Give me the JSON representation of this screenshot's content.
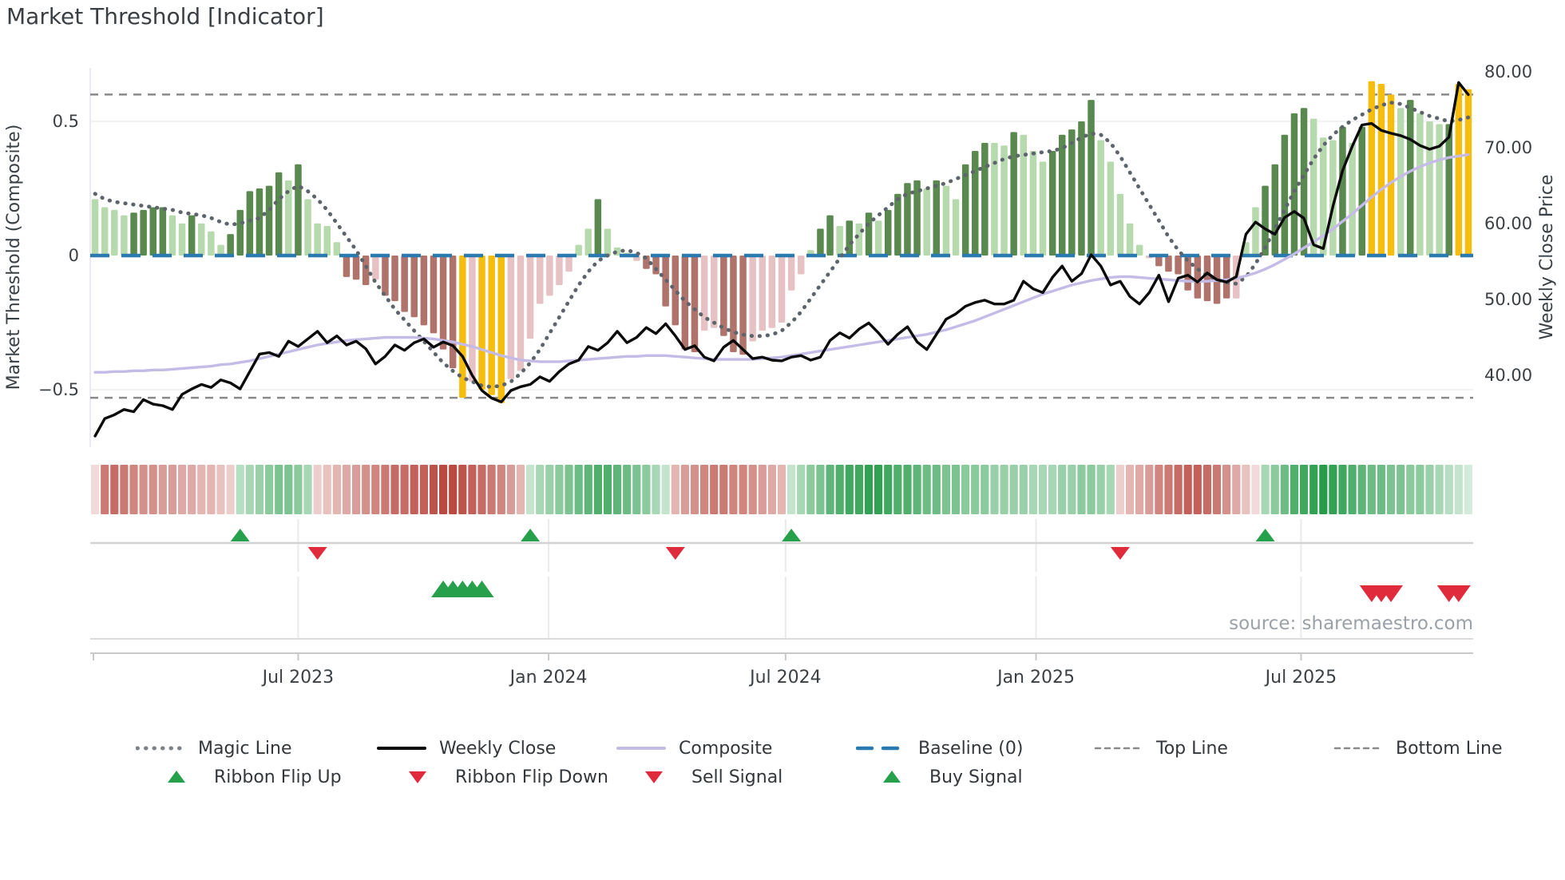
{
  "title": "Market Threshold [Indicator]",
  "source": "source: sharemaestro.com",
  "colors": {
    "bar_light_green": "#b7d9ae",
    "bar_dark_green": "#59894f",
    "bar_yellow": "#f5bd0d",
    "bar_pink": "#e7c2c4",
    "bar_dark_red": "#b0736b",
    "baseline_blue": "#2a7ab0",
    "magic_line_gray": "#5d646b",
    "weekly_close_black": "#0b0b0b",
    "composite_lavender": "#c5bbe7",
    "threshold_gray": "#8a8a8a",
    "ribbon_red_base": "#b94a42",
    "ribbon_green_base": "#279c4a",
    "signal_green": "#27a04b",
    "signal_red": "#e02b3d",
    "axis_text": "#3b4045",
    "grid": "#ededf3"
  },
  "chart_data": {
    "type": "bar",
    "title": "Market Threshold [Indicator]",
    "x_axis": {
      "tick_labels": [
        "Jul 2023",
        "Jan 2024",
        "Jul 2024",
        "Jan 2025",
        "Jul 2025"
      ],
      "tick_weeks": [
        21.0,
        46.9,
        71.4,
        97.3,
        124.7
      ],
      "n_weeks": 143
    },
    "left_axis": {
      "title": "Market Threshold (Composite)",
      "tick_labels": [
        "0.5",
        "0",
        "−0.5"
      ],
      "tick_values": [
        0.5,
        0,
        -0.5
      ]
    },
    "right_axis": {
      "title": "Weekly Close Price",
      "tick_labels": [
        "80.00",
        "70.00",
        "60.00",
        "50.00",
        "40.00"
      ],
      "tick_values": [
        80,
        70,
        60,
        50,
        40
      ]
    },
    "baseline": 0,
    "top_line": 0.6,
    "bottom_line": -0.53,
    "threshold_bars": {
      "values": [
        0.21,
        0.18,
        0.17,
        0.15,
        0.16,
        0.17,
        0.18,
        0.18,
        0.15,
        0.12,
        0.15,
        0.12,
        0.09,
        0.04,
        0.08,
        0.17,
        0.24,
        0.25,
        0.26,
        0.31,
        0.28,
        0.34,
        0.21,
        0.12,
        0.11,
        0.05,
        -0.08,
        -0.09,
        -0.11,
        -0.09,
        -0.15,
        -0.17,
        -0.21,
        -0.23,
        -0.26,
        -0.29,
        -0.35,
        -0.42,
        -0.53,
        -0.47,
        -0.5,
        -0.52,
        -0.55,
        -0.46,
        -0.43,
        -0.31,
        -0.18,
        -0.15,
        -0.11,
        -0.06,
        0.04,
        0.1,
        0.21,
        0.1,
        0.03,
        0.01,
        -0.02,
        -0.05,
        -0.07,
        -0.19,
        -0.26,
        -0.35,
        -0.36,
        -0.28,
        -0.27,
        -0.3,
        -0.36,
        -0.37,
        -0.32,
        -0.28,
        -0.27,
        -0.25,
        -0.13,
        -0.07,
        0.02,
        0.1,
        0.15,
        0.11,
        0.13,
        0.12,
        0.16,
        0.13,
        0.17,
        0.23,
        0.27,
        0.28,
        0.25,
        0.28,
        0.26,
        0.21,
        0.34,
        0.39,
        0.42,
        0.42,
        0.41,
        0.46,
        0.45,
        0.39,
        0.35,
        0.39,
        0.45,
        0.47,
        0.5,
        0.58,
        0.43,
        0.35,
        0.23,
        0.12,
        0.04,
        -0.01,
        -0.04,
        -0.06,
        -0.07,
        -0.13,
        -0.16,
        -0.17,
        -0.18,
        -0.16,
        -0.16,
        0.05,
        0.18,
        0.26,
        0.34,
        0.45,
        0.53,
        0.55,
        0.51,
        0.44,
        0.43,
        0.48,
        0.42,
        0.48,
        0.65,
        0.64,
        0.6,
        0.55,
        0.58,
        0.53,
        0.5,
        0.49,
        0.49,
        0.64,
        0.62
      ],
      "colors": [
        "lg",
        "lg",
        "lg",
        "lg",
        "dg",
        "dg",
        "dg",
        "dg",
        "lg",
        "lg",
        "dg",
        "lg",
        "lg",
        "lg",
        "dg",
        "dg",
        "dg",
        "dg",
        "dg",
        "dg",
        "lg",
        "dg",
        "lg",
        "lg",
        "lg",
        "lg",
        "dr",
        "dr",
        "dr",
        "pk",
        "dr",
        "dr",
        "dr",
        "dr",
        "dr",
        "dr",
        "dr",
        "dr",
        "y",
        "pk",
        "y",
        "y",
        "y",
        "pk",
        "pk",
        "pk",
        "pk",
        "pk",
        "pk",
        "pk",
        "lg",
        "lg",
        "dg",
        "lg",
        "lg",
        "lg",
        "pk",
        "dr",
        "dr",
        "dr",
        "dr",
        "dr",
        "dr",
        "pk",
        "pk",
        "dr",
        "dr",
        "dr",
        "pk",
        "pk",
        "pk",
        "pk",
        "pk",
        "pk",
        "lg",
        "dg",
        "dg",
        "lg",
        "dg",
        "lg",
        "dg",
        "lg",
        "dg",
        "dg",
        "dg",
        "dg",
        "lg",
        "dg",
        "lg",
        "lg",
        "dg",
        "dg",
        "dg",
        "lg",
        "lg",
        "dg",
        "lg",
        "lg",
        "lg",
        "dg",
        "dg",
        "dg",
        "dg",
        "dg",
        "lg",
        "lg",
        "lg",
        "lg",
        "lg",
        "pk",
        "dr",
        "dr",
        "dr",
        "dr",
        "dr",
        "dr",
        "dr",
        "dr",
        "pk",
        "lg",
        "lg",
        "dg",
        "dg",
        "dg",
        "dg",
        "dg",
        "lg",
        "lg",
        "lg",
        "dg",
        "lg",
        "dg",
        "y",
        "y",
        "y",
        "lg",
        "dg",
        "lg",
        "lg",
        "lg",
        "dg",
        "y",
        "y"
      ]
    },
    "weekly_close": [
      32.0,
      34.3,
      34.8,
      35.5,
      35.2,
      36.8,
      36.2,
      36.0,
      35.5,
      37.5,
      38.2,
      38.8,
      38.4,
      39.4,
      39.0,
      38.2,
      40.5,
      42.8,
      43.0,
      42.5,
      44.5,
      43.8,
      44.8,
      45.8,
      44.3,
      45.2,
      44.0,
      44.5,
      43.5,
      41.5,
      42.5,
      44.0,
      43.3,
      44.3,
      44.8,
      43.7,
      44.4,
      43.9,
      42.5,
      40.0,
      38.0,
      37.0,
      36.5,
      38.0,
      38.5,
      38.8,
      39.8,
      39.2,
      40.5,
      41.5,
      42.0,
      43.8,
      43.3,
      44.3,
      45.8,
      44.3,
      45.0,
      46.3,
      45.5,
      46.8,
      45.2,
      43.4,
      43.9,
      42.4,
      41.9,
      43.7,
      44.6,
      43.4,
      42.2,
      42.4,
      42.0,
      41.9,
      42.4,
      42.6,
      42.0,
      42.4,
      44.6,
      45.6,
      44.9,
      46.1,
      46.9,
      45.6,
      44.1,
      45.4,
      46.4,
      44.4,
      43.4,
      45.4,
      47.4,
      48.1,
      49.1,
      49.6,
      49.9,
      49.4,
      49.4,
      49.9,
      52.4,
      51.4,
      50.9,
      52.9,
      54.4,
      52.4,
      53.4,
      55.9,
      54.4,
      51.9,
      52.4,
      50.4,
      49.4,
      50.9,
      53.2,
      49.7,
      52.8,
      53.2,
      52.3,
      53.5,
      52.6,
      52.3,
      53.0,
      58.6,
      60.2,
      59.3,
      58.6,
      60.8,
      61.6,
      60.7,
      57.2,
      56.7,
      62.3,
      67.0,
      70.2,
      73.0,
      73.2,
      72.3,
      71.9,
      71.6,
      71.1,
      70.3,
      69.8,
      70.2,
      71.4,
      78.6,
      77.0
    ],
    "composite": [
      40.4,
      40.4,
      40.5,
      40.5,
      40.6,
      40.6,
      40.7,
      40.7,
      40.8,
      40.9,
      41.0,
      41.1,
      41.2,
      41.4,
      41.5,
      41.7,
      41.9,
      42.2,
      42.5,
      42.8,
      43.1,
      43.4,
      43.7,
      44.0,
      44.2,
      44.4,
      44.6,
      44.7,
      44.8,
      44.9,
      45.0,
      45.0,
      45.0,
      45.0,
      44.9,
      44.8,
      44.6,
      44.4,
      44.1,
      43.8,
      43.4,
      43.0,
      42.6,
      42.3,
      42.0,
      41.9,
      41.8,
      41.8,
      41.8,
      41.9,
      42.0,
      42.1,
      42.2,
      42.3,
      42.4,
      42.5,
      42.5,
      42.6,
      42.6,
      42.6,
      42.5,
      42.4,
      42.3,
      42.2,
      42.1,
      42.1,
      42.1,
      42.1,
      42.1,
      42.2,
      42.3,
      42.4,
      42.6,
      42.8,
      43.0,
      43.2,
      43.4,
      43.6,
      43.8,
      44.0,
      44.2,
      44.4,
      44.6,
      44.8,
      45.0,
      45.2,
      45.4,
      45.7,
      46.0,
      46.4,
      46.8,
      47.2,
      47.7,
      48.2,
      48.7,
      49.2,
      49.7,
      50.2,
      50.7,
      51.1,
      51.5,
      51.9,
      52.2,
      52.5,
      52.7,
      52.9,
      53.0,
      53.0,
      52.9,
      52.8,
      52.7,
      52.6,
      52.5,
      52.4,
      52.4,
      52.4,
      52.5,
      52.6,
      52.8,
      53.1,
      53.5,
      54.0,
      54.6,
      55.3,
      56.0,
      56.8,
      57.6,
      58.4,
      59.3,
      60.3,
      61.3,
      62.4,
      63.5,
      64.5,
      65.4,
      66.2,
      66.9,
      67.5,
      68.0,
      68.4,
      68.7,
      68.9,
      69.1
    ],
    "magic_line": [
      0.23,
      0.21,
      0.2,
      0.195,
      0.19,
      0.185,
      0.18,
      0.175,
      0.17,
      0.16,
      0.155,
      0.15,
      0.14,
      0.125,
      0.115,
      0.12,
      0.13,
      0.14,
      0.17,
      0.21,
      0.24,
      0.26,
      0.24,
      0.21,
      0.17,
      0.12,
      0.07,
      0.02,
      -0.04,
      -0.1,
      -0.15,
      -0.2,
      -0.24,
      -0.28,
      -0.32,
      -0.36,
      -0.4,
      -0.43,
      -0.455,
      -0.47,
      -0.485,
      -0.49,
      -0.485,
      -0.47,
      -0.44,
      -0.4,
      -0.35,
      -0.29,
      -0.23,
      -0.17,
      -0.11,
      -0.06,
      -0.02,
      0.0,
      0.015,
      0.02,
      0.01,
      -0.01,
      -0.05,
      -0.09,
      -0.13,
      -0.17,
      -0.2,
      -0.23,
      -0.25,
      -0.27,
      -0.285,
      -0.295,
      -0.3,
      -0.3,
      -0.295,
      -0.28,
      -0.25,
      -0.21,
      -0.16,
      -0.11,
      -0.06,
      -0.01,
      0.04,
      0.08,
      0.12,
      0.15,
      0.18,
      0.21,
      0.23,
      0.24,
      0.25,
      0.26,
      0.27,
      0.285,
      0.3,
      0.315,
      0.33,
      0.345,
      0.36,
      0.37,
      0.375,
      0.38,
      0.385,
      0.39,
      0.4,
      0.42,
      0.44,
      0.455,
      0.45,
      0.42,
      0.37,
      0.31,
      0.25,
      0.19,
      0.13,
      0.07,
      0.02,
      -0.02,
      -0.05,
      -0.075,
      -0.09,
      -0.1,
      -0.105,
      -0.08,
      -0.03,
      0.03,
      0.1,
      0.17,
      0.24,
      0.3,
      0.36,
      0.41,
      0.45,
      0.48,
      0.505,
      0.525,
      0.545,
      0.56,
      0.57,
      0.565,
      0.55,
      0.535,
      0.52,
      0.51,
      0.5,
      0.505,
      0.515
    ],
    "ribbon": [
      -0.15,
      -0.55,
      -0.6,
      -0.55,
      -0.5,
      -0.45,
      -0.45,
      -0.4,
      -0.4,
      -0.35,
      -0.35,
      -0.3,
      -0.3,
      -0.25,
      -0.2,
      0.25,
      0.3,
      0.35,
      0.4,
      0.45,
      0.45,
      0.4,
      0.3,
      -0.2,
      -0.25,
      -0.3,
      -0.35,
      -0.4,
      -0.45,
      -0.5,
      -0.55,
      -0.6,
      -0.6,
      -0.65,
      -0.65,
      -0.7,
      -0.75,
      -0.75,
      -0.7,
      -0.65,
      -0.6,
      -0.55,
      -0.5,
      -0.4,
      -0.3,
      0.2,
      0.3,
      0.35,
      0.4,
      0.45,
      0.5,
      0.55,
      0.6,
      0.6,
      0.55,
      0.5,
      0.45,
      0.4,
      0.3,
      0.2,
      -0.3,
      -0.4,
      -0.45,
      -0.5,
      -0.55,
      -0.55,
      -0.5,
      -0.5,
      -0.45,
      -0.4,
      -0.35,
      -0.3,
      0.2,
      0.3,
      0.4,
      0.45,
      0.55,
      0.6,
      0.65,
      0.65,
      0.7,
      0.7,
      0.65,
      0.6,
      0.6,
      0.55,
      0.5,
      0.5,
      0.45,
      0.45,
      0.4,
      0.4,
      0.4,
      0.35,
      0.35,
      0.35,
      0.35,
      0.3,
      0.3,
      0.3,
      0.35,
      0.35,
      0.4,
      0.4,
      0.35,
      0.3,
      -0.2,
      -0.3,
      -0.35,
      -0.4,
      -0.5,
      -0.55,
      -0.6,
      -0.65,
      -0.65,
      -0.6,
      -0.55,
      -0.45,
      -0.35,
      -0.25,
      -0.15,
      0.3,
      0.4,
      0.5,
      0.6,
      0.65,
      0.7,
      0.75,
      0.7,
      0.65,
      0.6,
      0.55,
      0.5,
      0.5,
      0.45,
      0.45,
      0.4,
      0.4,
      0.35,
      0.3,
      0.25,
      0.2,
      0.15
    ],
    "signals": {
      "ribbon_flip_up_weeks": [
        15,
        45,
        72,
        121
      ],
      "ribbon_flip_down_weeks": [
        23,
        60,
        106
      ],
      "buy_signal_weeks": [
        36,
        37,
        38,
        39,
        40
      ],
      "sell_signal_weeks": [
        132,
        133,
        134,
        140,
        141
      ]
    }
  },
  "legend": {
    "row1": [
      {
        "label": "Magic Line",
        "marker": "dotted-gray-line"
      },
      {
        "label": "Weekly Close",
        "marker": "solid-black-line"
      },
      {
        "label": "Composite",
        "marker": "solid-lavender-line"
      },
      {
        "label": "Baseline (0)",
        "marker": "dashed-blue-line"
      },
      {
        "label": "Top Line",
        "marker": "fine-dashed-gray-line"
      },
      {
        "label": "Bottom Line",
        "marker": "fine-dashed-gray-line"
      }
    ],
    "row2": [
      {
        "label": "Ribbon Flip Up",
        "marker": "green-up-triangle"
      },
      {
        "label": "Ribbon Flip Down",
        "marker": "red-down-triangle"
      },
      {
        "label": "Sell Signal",
        "marker": "red-down-triangle"
      },
      {
        "label": "Buy Signal",
        "marker": "green-up-triangle"
      }
    ]
  }
}
